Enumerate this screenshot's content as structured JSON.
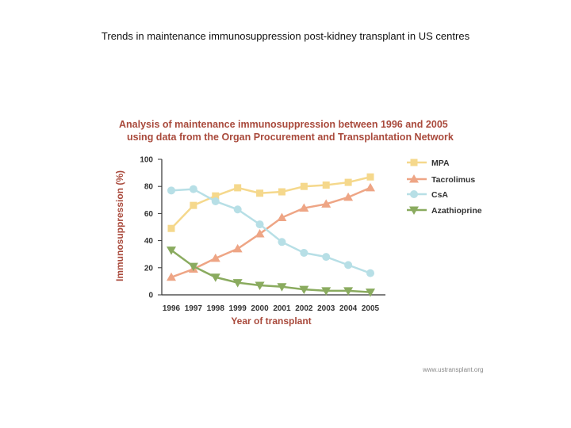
{
  "slide_title": "Trends in maintenance immunosuppression post-kidney transplant in US centres",
  "source": "www.ustransplant.org",
  "colors": {
    "title": "#a94a3c",
    "axis": "#333333"
  },
  "chart_data": {
    "type": "line",
    "title_lines": [
      "Analysis of maintenance immunosuppression between 1996 and 2005",
      "using data from the Organ Procurement and Transplantation Network"
    ],
    "xlabel": "Year of transplant",
    "ylabel": "Immunosuppression (%)",
    "x": [
      1996,
      1997,
      1998,
      1999,
      2000,
      2001,
      2002,
      2003,
      2004,
      2005
    ],
    "ylim": [
      0,
      100
    ],
    "yticks": [
      0,
      20,
      40,
      60,
      80,
      100
    ],
    "grid": false,
    "legend_position": "right",
    "series": [
      {
        "name": "MPA",
        "color": "#f5d88c",
        "marker": "square",
        "values": [
          49,
          66,
          73,
          79,
          75,
          76,
          80,
          81,
          83,
          87
        ]
      },
      {
        "name": "Tacrolimus",
        "color": "#eea585",
        "marker": "triangle-up",
        "values": [
          13,
          19,
          27,
          34,
          45,
          57,
          64,
          67,
          72,
          79
        ]
      },
      {
        "name": "CsA",
        "color": "#b7dfe6",
        "marker": "circle",
        "values": [
          77,
          78,
          69,
          63,
          52,
          39,
          31,
          28,
          22,
          16
        ]
      },
      {
        "name": "Azathioprine",
        "color": "#8aab5f",
        "marker": "triangle-down",
        "values": [
          33,
          21,
          13,
          9,
          7,
          6,
          4,
          3,
          3,
          2
        ]
      }
    ]
  }
}
